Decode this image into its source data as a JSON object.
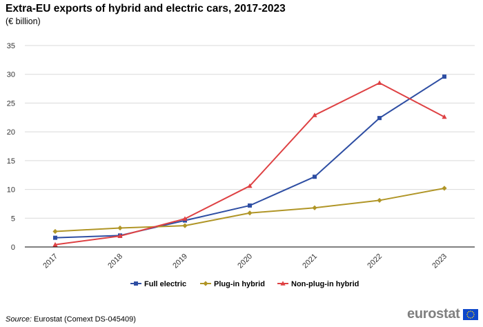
{
  "chart_data": {
    "type": "line",
    "title": "Extra-EU exports of hybrid and electric cars, 2017-2023",
    "subtitle": "(€ billion)",
    "xlabel": "",
    "ylabel": "",
    "ylim": [
      0,
      35
    ],
    "yticks": [
      "0",
      "5",
      "10",
      "15",
      "20",
      "25",
      "30",
      "35"
    ],
    "categories": [
      "2017",
      "2018",
      "2019",
      "2020",
      "2021",
      "2022",
      "2023"
    ],
    "grid": true,
    "legend_position": "bottom",
    "series": [
      {
        "name": "Full electric",
        "color": "#2e4ea3",
        "marker": "square",
        "values": [
          1.6,
          2.0,
          4.6,
          7.2,
          12.2,
          22.4,
          29.6
        ]
      },
      {
        "name": "Plug-in hybrid",
        "color": "#b09526",
        "marker": "diamond",
        "values": [
          2.7,
          3.3,
          3.7,
          5.9,
          6.8,
          8.1,
          10.2
        ]
      },
      {
        "name": "Non-plug-in hybrid",
        "color": "#de4143",
        "marker": "triangle",
        "values": [
          0.4,
          1.9,
          4.9,
          10.6,
          22.9,
          28.5,
          22.6
        ]
      }
    ]
  },
  "source": {
    "label": "Source:",
    "text": " Eurostat (Comext DS-045409)"
  },
  "logo": {
    "text": "eurostat"
  },
  "colors": {
    "grid": "#d9d9d9",
    "axis": "#000000",
    "logo_flag": "#0e47cb",
    "logo_stars": "#ffd617"
  }
}
